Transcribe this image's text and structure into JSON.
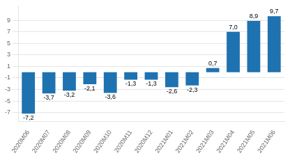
{
  "chart_data": {
    "type": "bar",
    "categories": [
      "2020M06",
      "2020M07",
      "2020M08",
      "2020M09",
      "2020M10",
      "2020M11",
      "2020M12",
      "2021M01",
      "2021M02",
      "2021M03",
      "2021M04",
      "2021M05",
      "2021M06"
    ],
    "values": [
      -7.2,
      -3.7,
      -3.2,
      -2.1,
      -3.6,
      -1.3,
      -1.3,
      -2.6,
      -2.3,
      0.7,
      7.0,
      8.9,
      9.7
    ],
    "value_labels": [
      "-7,2",
      "-3,7",
      "-3,2",
      "-2,1",
      "-3,6",
      "-1,3",
      "-1,3",
      "-2,6",
      "-2,3",
      "0,7",
      "7,0",
      "8,9",
      "9,7"
    ],
    "color": "#1F72B0",
    "ylim": [
      -8.5,
      11.5
    ],
    "yticks": [
      -7,
      -5,
      -3,
      -1,
      1,
      3,
      5,
      7,
      9
    ],
    "grid": true,
    "data_labels": true
  }
}
